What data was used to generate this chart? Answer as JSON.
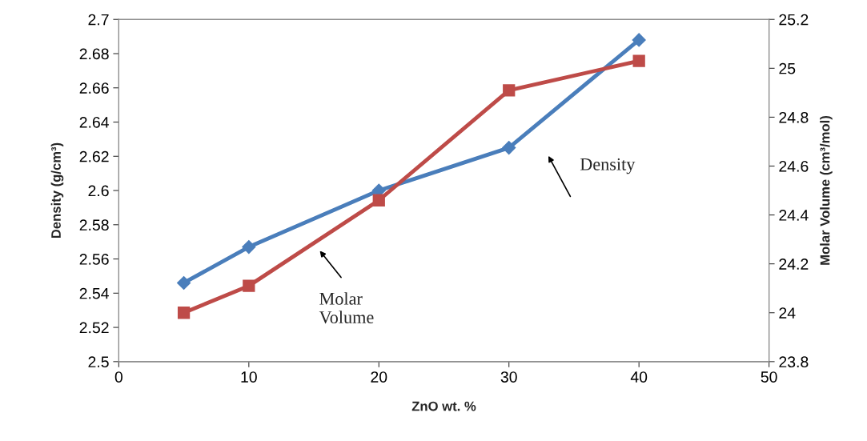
{
  "chart_data": {
    "type": "line",
    "xlabel": "ZnO wt. %",
    "ylabel": "Density (g/cm³)",
    "y2label": "Molar Volume (cm³/mol)",
    "x": [
      5,
      10,
      20,
      30,
      40
    ],
    "series": [
      {
        "color": "#4a7ebb",
        "marker": "diamond",
        "values": [
          2.546,
          2.567,
          2.6,
          2.625,
          2.688
        ]
      },
      {
        "color": "#be4b48",
        "marker": "square",
        "axis": "y2",
        "values": [
          24.0,
          24.11,
          24.46,
          24.91,
          25.03
        ]
      }
    ],
    "xlim": [
      0,
      50
    ],
    "xticks": [
      0,
      10,
      20,
      30,
      40,
      50
    ],
    "ylim": [
      2.5,
      2.7
    ],
    "yticks": [
      2.5,
      2.52,
      2.54,
      2.56,
      2.58,
      2.6,
      2.62,
      2.64,
      2.66,
      2.68,
      2.7
    ],
    "y2lim": [
      23.8,
      25.2
    ],
    "y2ticks": [
      23.8,
      24,
      24.2,
      24.4,
      24.6,
      24.8,
      25,
      25.2
    ],
    "annotations": [
      "Density",
      "Molar\nVolume"
    ],
    "grid": false,
    "legend": false
  }
}
